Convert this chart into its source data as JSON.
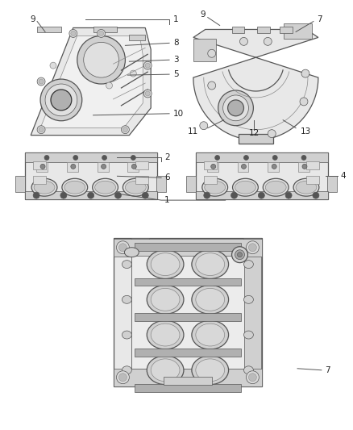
{
  "bg_color": "#ffffff",
  "lc": "#555555",
  "lc_light": "#888888",
  "lc_dark": "#333333",
  "fill_light": "#e8e8e8",
  "fill_mid": "#d0d0d0",
  "fill_dark": "#b0b0b0",
  "nc": "#222222",
  "clc": "#555555",
  "fig_width": 4.38,
  "fig_height": 5.33,
  "dpi": 100,
  "fs": 7.5,
  "lw_main": 0.9,
  "lw_thin": 0.5,
  "lw_med": 0.7
}
